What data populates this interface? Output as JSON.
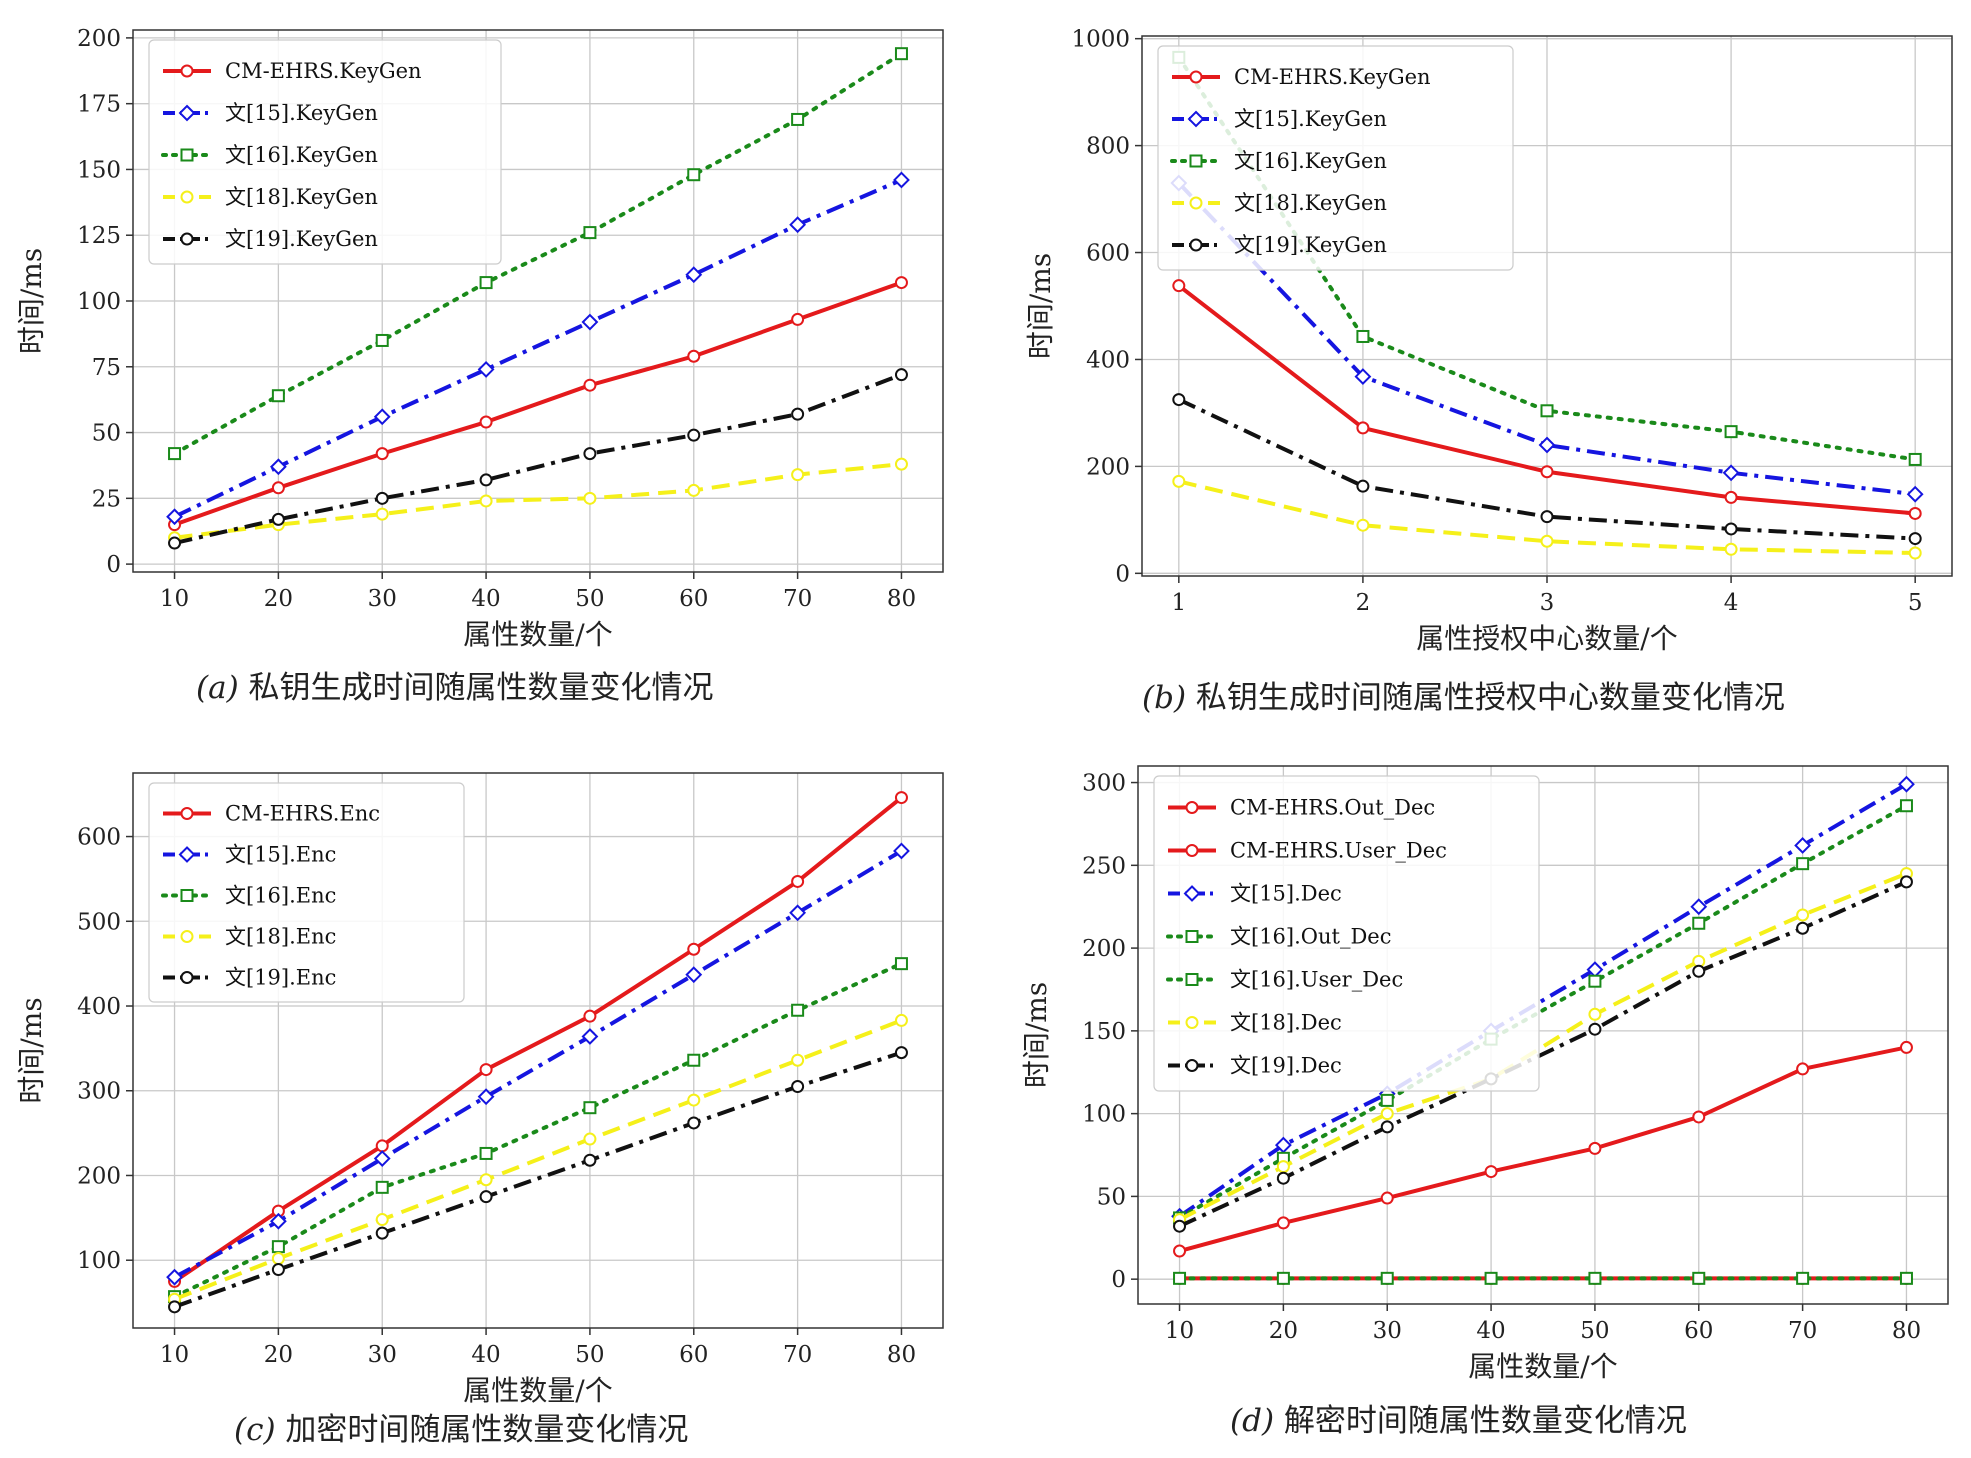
{
  "chart_data": [
    {
      "type": "line",
      "caption_letter": "(a)",
      "caption_text": "私钥生成时间随属性数量变化情况",
      "xlabel": "属性数量/个",
      "ylabel": "时间/ms",
      "x": [
        10,
        20,
        30,
        40,
        50,
        60,
        70,
        80
      ],
      "xlim": [
        6,
        84
      ],
      "ylim": [
        -3,
        203
      ],
      "xticks": [
        10,
        20,
        30,
        40,
        50,
        60,
        70,
        80
      ],
      "yticks": [
        0,
        25,
        50,
        75,
        100,
        125,
        150,
        175,
        200
      ],
      "grid": true,
      "legend": "top-left",
      "series": [
        {
          "name": "CM-EHRS.KeyGen",
          "values": [
            15,
            29,
            42,
            54,
            68,
            79,
            93,
            107
          ],
          "color": "#e41a1c",
          "style": "solid",
          "marker": "circle"
        },
        {
          "name": "文[15].KeyGen",
          "values": [
            18,
            37,
            56,
            74,
            92,
            110,
            129,
            146
          ],
          "color": "#1515e0",
          "style": "dashdot",
          "marker": "diamond"
        },
        {
          "name": "文[16].KeyGen",
          "values": [
            42,
            64,
            85,
            107,
            126,
            148,
            169,
            194
          ],
          "color": "#1a8a1a",
          "style": "dotted",
          "marker": "square"
        },
        {
          "name": "文[18].KeyGen",
          "values": [
            10,
            15,
            19,
            24,
            25,
            28,
            34,
            38
          ],
          "color": "#f5f01a",
          "style": "dashed",
          "marker": "circle"
        },
        {
          "name": "文[19].KeyGen",
          "values": [
            8,
            17,
            25,
            32,
            42,
            49,
            57,
            72
          ],
          "color": "#111111",
          "style": "dashdot",
          "marker": "circle"
        }
      ]
    },
    {
      "type": "line",
      "caption_letter": "(b)",
      "caption_text": "私钥生成时间随属性授权中心数量变化情况",
      "xlabel": "属性授权中心数量/个",
      "ylabel": "时间/ms",
      "x": [
        1,
        2,
        3,
        4,
        5
      ],
      "xlim": [
        0.8,
        5.2
      ],
      "ylim": [
        -5,
        1005
      ],
      "xticks": [
        1,
        2,
        3,
        4,
        5
      ],
      "yticks": [
        0,
        200,
        400,
        600,
        800,
        1000
      ],
      "grid": true,
      "legend": "top-left",
      "series": [
        {
          "name": "CM-EHRS.KeyGen",
          "values": [
            538,
            272,
            190,
            142,
            112
          ],
          "color": "#e41a1c",
          "style": "solid",
          "marker": "circle"
        },
        {
          "name": "文[15].KeyGen",
          "values": [
            730,
            368,
            240,
            188,
            148
          ],
          "color": "#1515e0",
          "style": "dashdot",
          "marker": "diamond"
        },
        {
          "name": "文[16].KeyGen",
          "values": [
            965,
            443,
            304,
            265,
            213
          ],
          "color": "#1a8a1a",
          "style": "dotted",
          "marker": "square"
        },
        {
          "name": "文[18].KeyGen",
          "values": [
            172,
            90,
            60,
            45,
            38
          ],
          "color": "#f5f01a",
          "style": "dashed",
          "marker": "circle"
        },
        {
          "name": "文[19].KeyGen",
          "values": [
            325,
            163,
            106,
            83,
            65
          ],
          "color": "#111111",
          "style": "dashdot",
          "marker": "circle"
        }
      ]
    },
    {
      "type": "line",
      "caption_letter": "(c)",
      "caption_text": "加密时间随属性数量变化情况",
      "xlabel": "属性数量/个",
      "ylabel": "时间/ms",
      "x": [
        10,
        20,
        30,
        40,
        50,
        60,
        70,
        80
      ],
      "xlim": [
        6,
        84
      ],
      "ylim": [
        20,
        675
      ],
      "xticks": [
        10,
        20,
        30,
        40,
        50,
        60,
        70,
        80
      ],
      "yticks": [
        100,
        200,
        300,
        400,
        500,
        600
      ],
      "grid": true,
      "legend": "top-left",
      "series": [
        {
          "name": "CM-EHRS.Enc",
          "values": [
            75,
            158,
            235,
            325,
            388,
            467,
            547,
            646
          ],
          "color": "#e41a1c",
          "style": "solid",
          "marker": "circle"
        },
        {
          "name": "文[15].Enc",
          "values": [
            80,
            146,
            220,
            293,
            364,
            437,
            510,
            583
          ],
          "color": "#1515e0",
          "style": "dashdot",
          "marker": "diamond"
        },
        {
          "name": "文[16].Enc",
          "values": [
            57,
            116,
            186,
            226,
            280,
            336,
            395,
            450
          ],
          "color": "#1a8a1a",
          "style": "dotted",
          "marker": "square"
        },
        {
          "name": "文[18].Enc",
          "values": [
            54,
            102,
            148,
            195,
            243,
            289,
            336,
            383
          ],
          "color": "#f5f01a",
          "style": "dashed",
          "marker": "circle"
        },
        {
          "name": "文[19].Enc",
          "values": [
            45,
            89,
            132,
            175,
            218,
            262,
            305,
            345
          ],
          "color": "#111111",
          "style": "dashdot",
          "marker": "circle"
        }
      ]
    },
    {
      "type": "line",
      "caption_letter": "(d)",
      "caption_text": "解密时间随属性数量变化情况",
      "xlabel": "属性数量/个",
      "ylabel": "时间/ms",
      "x": [
        10,
        20,
        30,
        40,
        50,
        60,
        70,
        80
      ],
      "xlim": [
        6,
        84
      ],
      "ylim": [
        -15,
        310
      ],
      "xticks": [
        10,
        20,
        30,
        40,
        50,
        60,
        70,
        80
      ],
      "yticks": [
        0,
        50,
        100,
        150,
        200,
        250,
        300
      ],
      "grid": true,
      "legend": "top-left",
      "series": [
        {
          "name": "CM-EHRS.Out_Dec",
          "values": [
            17,
            34,
            49,
            65,
            79,
            98,
            127,
            140
          ],
          "color": "#e41a1c",
          "style": "solid",
          "marker": "circle"
        },
        {
          "name": "CM-EHRS.User_Dec",
          "values": [
            0.5,
            0.5,
            0.5,
            0.5,
            0.5,
            0.5,
            0.5,
            0.5
          ],
          "color": "#e41a1c",
          "style": "solid",
          "marker": "circle"
        },
        {
          "name": "文[15].Dec",
          "values": [
            38,
            81,
            112,
            150,
            187,
            225,
            262,
            299
          ],
          "color": "#1515e0",
          "style": "dashdot",
          "marker": "diamond"
        },
        {
          "name": "文[16].Out_Dec",
          "values": [
            37,
            73,
            108,
            145,
            180,
            215,
            251,
            286
          ],
          "color": "#1a8a1a",
          "style": "dotted",
          "marker": "square"
        },
        {
          "name": "文[16].User_Dec",
          "values": [
            0.5,
            0.5,
            0.5,
            0.5,
            0.5,
            0.5,
            0.5,
            0.5
          ],
          "color": "#1a8a1a",
          "style": "dotted",
          "marker": "square"
        },
        {
          "name": "文[18].Dec",
          "values": [
            36,
            68,
            100,
            121,
            160,
            192,
            220,
            245
          ],
          "color": "#f5f01a",
          "style": "dashed",
          "marker": "circle"
        },
        {
          "name": "文[19].Dec",
          "values": [
            32,
            61,
            92,
            121,
            151,
            186,
            212,
            240
          ],
          "color": "#111111",
          "style": "dashdot",
          "marker": "circle"
        }
      ]
    }
  ]
}
